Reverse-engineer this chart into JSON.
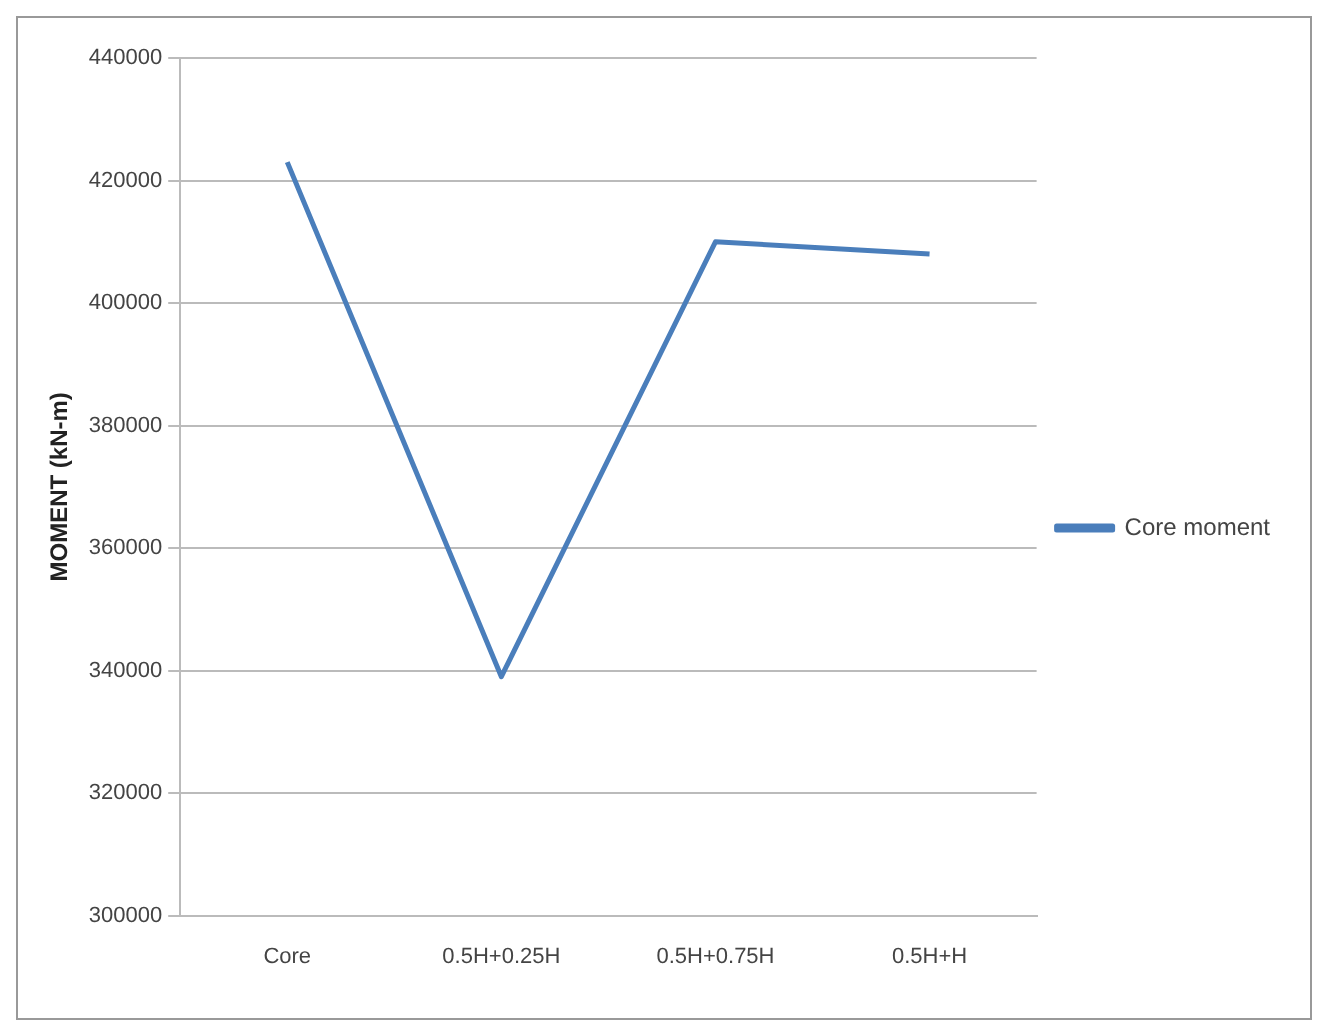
{
  "chart_data": {
    "type": "line",
    "ylabel": "MOMENT (kN-m)",
    "categories": [
      "Core",
      "0.5H+0.25H",
      "0.5H+0.75H",
      "0.5H+H"
    ],
    "series": [
      {
        "name": "Core moment",
        "color": "#4a7ebb",
        "values": [
          423000,
          339000,
          410000,
          408000
        ]
      }
    ],
    "ylim": [
      300000,
      440000
    ],
    "yticks": [
      300000,
      320000,
      340000,
      360000,
      380000,
      400000,
      420000,
      440000
    ],
    "grid": "y",
    "legend": "right",
    "marker": "none"
  }
}
